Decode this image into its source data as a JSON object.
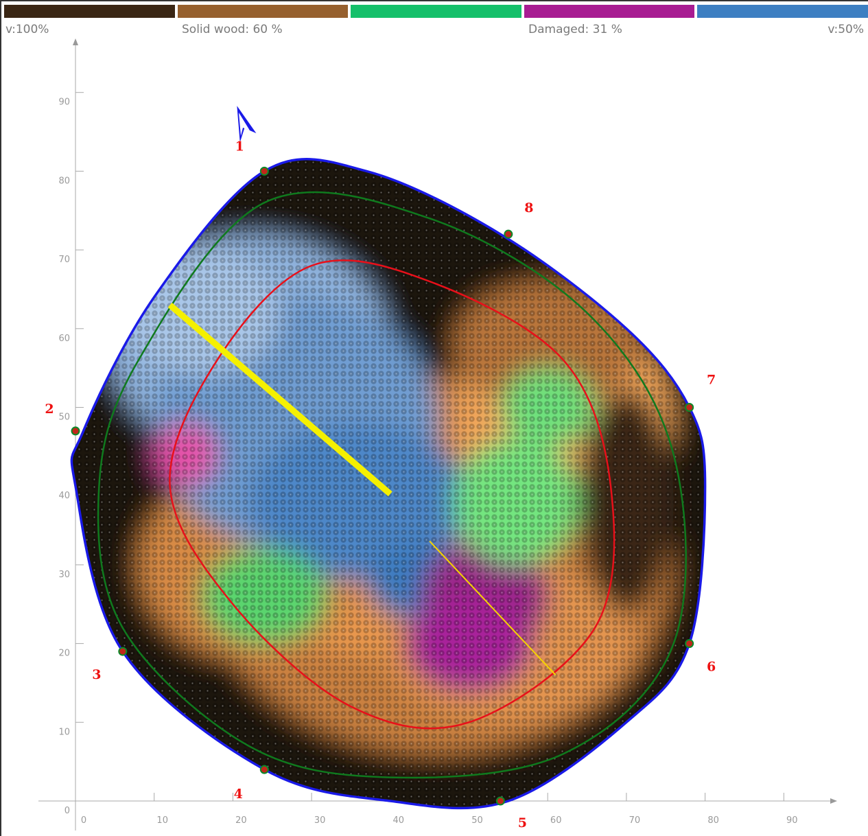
{
  "colorbar": {
    "segments": [
      {
        "name": "sound-dark",
        "color": "#3a2614"
      },
      {
        "name": "solid-wood",
        "color": "#96602e"
      },
      {
        "name": "transition",
        "color": "#15c06a"
      },
      {
        "name": "damaged",
        "color": "#a81c92"
      },
      {
        "name": "cavity",
        "color": "#3d7fc2"
      }
    ],
    "label_left": "v:100%",
    "label_solid": "Solid wood: 60 %",
    "label_damaged": "Damaged: 31 %",
    "label_right": "v:50%"
  },
  "chart_data": {
    "type": "heatmap",
    "title": "",
    "xlabel": "",
    "ylabel": "",
    "xlim": [
      0,
      95
    ],
    "ylim": [
      0,
      95
    ],
    "x_ticks": [
      "0",
      "10",
      "20",
      "30",
      "40",
      "50",
      "60",
      "70",
      "80",
      "90"
    ],
    "y_ticks": [
      "0",
      "10",
      "20",
      "30",
      "40",
      "50",
      "60",
      "70",
      "80",
      "90"
    ],
    "grid": false,
    "solid_wood_percent": 60,
    "damaged_percent": 31,
    "velocity_scale": [
      "100%",
      "50%"
    ],
    "outline": [
      [
        24,
        80
      ],
      [
        37,
        80
      ],
      [
        54,
        72
      ],
      [
        70,
        60
      ],
      [
        78,
        50
      ],
      [
        80,
        40
      ],
      [
        78,
        20
      ],
      [
        70,
        10
      ],
      [
        55,
        0
      ],
      [
        40,
        0
      ],
      [
        24,
        4
      ],
      [
        6,
        19
      ],
      [
        0,
        40
      ],
      [
        1,
        47
      ],
      [
        10,
        64
      ],
      [
        24,
        80
      ]
    ],
    "measurement_points": [
      {
        "label": "1",
        "x": 24,
        "y": 80
      },
      {
        "label": "2",
        "x": 0,
        "y": 47
      },
      {
        "label": "3",
        "x": 6,
        "y": 19
      },
      {
        "label": "4",
        "x": 24,
        "y": 4
      },
      {
        "label": "5",
        "x": 54,
        "y": 0
      },
      {
        "label": "6",
        "x": 78,
        "y": 20
      },
      {
        "label": "7",
        "x": 78,
        "y": 50
      },
      {
        "label": "8",
        "x": 55,
        "y": 72
      }
    ],
    "inner_contour_green": [
      [
        24,
        76
      ],
      [
        45,
        74
      ],
      [
        65,
        62
      ],
      [
        76,
        44
      ],
      [
        76,
        20
      ],
      [
        62,
        6
      ],
      [
        40,
        3
      ],
      [
        22,
        7
      ],
      [
        6,
        22
      ],
      [
        3,
        40
      ],
      [
        8,
        56
      ],
      [
        24,
        76
      ]
    ],
    "inner_contour_red": [
      [
        30,
        68
      ],
      [
        45,
        66
      ],
      [
        62,
        56
      ],
      [
        68,
        40
      ],
      [
        66,
        22
      ],
      [
        50,
        10
      ],
      [
        35,
        12
      ],
      [
        20,
        25
      ],
      [
        12,
        40
      ],
      [
        18,
        56
      ],
      [
        30,
        68
      ]
    ],
    "cavity_line": {
      "from": [
        12,
        63
      ],
      "to": [
        40,
        39
      ]
    },
    "crack_line": {
      "from": [
        45,
        33
      ],
      "to": [
        61,
        16
      ]
    }
  }
}
